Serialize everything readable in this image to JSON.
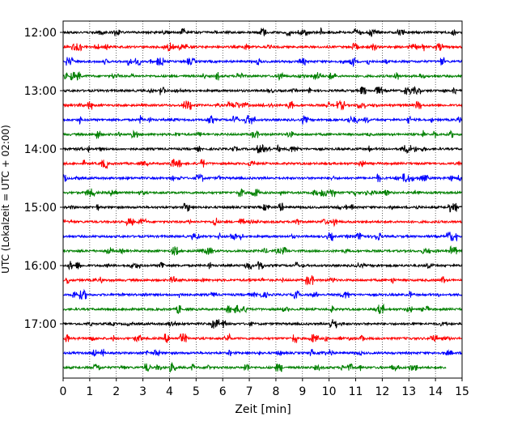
{
  "chart_data": {
    "type": "line",
    "title": "",
    "xlabel": "Zeit  [min]",
    "ylabel": "UTC (Lokalzeit = UTC + 02:00)",
    "xlim": [
      0,
      15
    ],
    "x_ticks": [
      "0",
      "1",
      "2",
      "3",
      "4",
      "5",
      "6",
      "7",
      "8",
      "9",
      "10",
      "11",
      "12",
      "13",
      "14",
      "15"
    ],
    "y_ticks": [
      "12:00",
      "13:00",
      "14:00",
      "15:00",
      "16:00",
      "17:00"
    ],
    "grid": "vertical dotted",
    "trace_colors": [
      "#000000",
      "#ff0000",
      "#0000ff",
      "#008000"
    ],
    "series": [
      {
        "start": "12:00",
        "x": [
          0,
          15
        ],
        "color": "#000000"
      },
      {
        "start": "12:15",
        "x": [
          0,
          15
        ],
        "color": "#ff0000"
      },
      {
        "start": "12:30",
        "x": [
          0,
          15
        ],
        "color": "#0000ff"
      },
      {
        "start": "12:45",
        "x": [
          0,
          15
        ],
        "color": "#008000"
      },
      {
        "start": "13:00",
        "x": [
          0,
          15
        ],
        "color": "#000000"
      },
      {
        "start": "13:15",
        "x": [
          0,
          15
        ],
        "color": "#ff0000"
      },
      {
        "start": "13:30",
        "x": [
          0,
          15
        ],
        "color": "#0000ff"
      },
      {
        "start": "13:45",
        "x": [
          0,
          15
        ],
        "color": "#008000"
      },
      {
        "start": "14:00",
        "x": [
          0,
          15
        ],
        "color": "#000000"
      },
      {
        "start": "14:15",
        "x": [
          0,
          15
        ],
        "color": "#ff0000"
      },
      {
        "start": "14:30",
        "x": [
          0,
          15
        ],
        "color": "#0000ff"
      },
      {
        "start": "14:45",
        "x": [
          0,
          15
        ],
        "color": "#008000"
      },
      {
        "start": "15:00",
        "x": [
          0,
          15
        ],
        "color": "#000000"
      },
      {
        "start": "15:15",
        "x": [
          0,
          15
        ],
        "color": "#ff0000"
      },
      {
        "start": "15:30",
        "x": [
          0,
          15
        ],
        "color": "#0000ff"
      },
      {
        "start": "15:45",
        "x": [
          0,
          15
        ],
        "color": "#008000"
      },
      {
        "start": "16:00",
        "x": [
          0,
          15
        ],
        "color": "#000000"
      },
      {
        "start": "16:15",
        "x": [
          0,
          15
        ],
        "color": "#ff0000"
      },
      {
        "start": "16:30",
        "x": [
          0,
          15
        ],
        "color": "#0000ff"
      },
      {
        "start": "16:45",
        "x": [
          0,
          15
        ],
        "color": "#008000"
      },
      {
        "start": "17:00",
        "x": [
          0,
          15
        ],
        "color": "#000000"
      },
      {
        "start": "17:15",
        "x": [
          0,
          15
        ],
        "color": "#ff0000"
      },
      {
        "start": "17:30",
        "x": [
          0,
          15
        ],
        "color": "#0000ff"
      },
      {
        "start": "17:45",
        "x": [
          0,
          14.4
        ],
        "color": "#008000"
      }
    ]
  }
}
